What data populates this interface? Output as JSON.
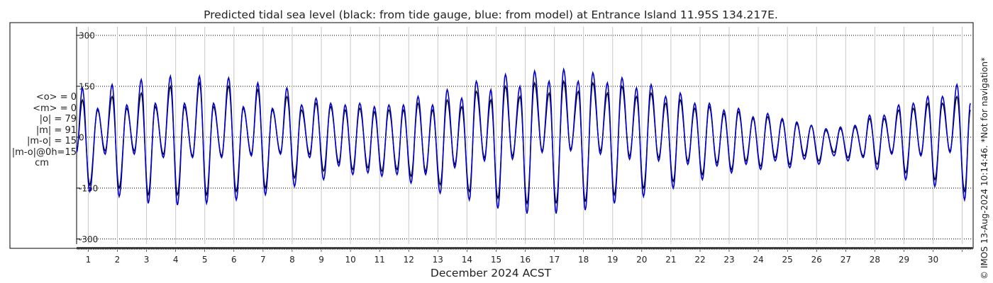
{
  "chart_data": {
    "type": "line",
    "title": "Predicted tidal sea level (black: from tide gauge, blue: from model) at Entrance Island 11.95S 134.217E.",
    "xlabel": "December 2024 ACST",
    "ylabel": "",
    "side_note": "© IMOS 13-Aug-2024 10:14:46. *Not for navigation*",
    "stats": [
      "<o> = 0",
      "<m> = 0",
      "|o| = 79",
      "|m| = 91",
      "|m-o| = 15",
      "|m-o|@0h=15",
      "cm"
    ],
    "xlim": [
      0.6,
      31.35
    ],
    "ylim": [
      -315,
      325
    ],
    "y_ticks": [
      -300,
      -150,
      0,
      150,
      300
    ],
    "y_tick_labels": [
      "-300",
      "-150",
      "0",
      "150",
      "300"
    ],
    "x_ticks": [
      1,
      2,
      3,
      4,
      5,
      6,
      7,
      8,
      9,
      10,
      11,
      12,
      13,
      14,
      15,
      16,
      17,
      18,
      19,
      20,
      21,
      22,
      23,
      24,
      25,
      26,
      27,
      28,
      29,
      30
    ],
    "x_tick_labels": [
      "1",
      "2",
      "3",
      "4",
      "5",
      "6",
      "7",
      "8",
      "9",
      "10",
      "11",
      "12",
      "13",
      "14",
      "15",
      "16",
      "17",
      "18",
      "19",
      "20",
      "21",
      "22",
      "23",
      "24",
      "25",
      "26",
      "27",
      "28",
      "29",
      "30"
    ],
    "grid": true,
    "x_hourly_minor_ticks": true,
    "series": [
      {
        "color": "#000000",
        "x": [
          0.6,
          0.8,
          1.05,
          1.32,
          1.58,
          1.82,
          2.06,
          2.32,
          2.58,
          2.82,
          3.06,
          3.3,
          3.58,
          3.82,
          4.06,
          4.3,
          4.58,
          4.82,
          5.06,
          5.3,
          5.58,
          5.82,
          6.08,
          6.32,
          6.6,
          6.82,
          7.08,
          7.32,
          7.6,
          7.82,
          8.08,
          8.32,
          8.6,
          8.82,
          9.08,
          9.32,
          9.6,
          9.82,
          10.08,
          10.32,
          10.6,
          10.82,
          11.08,
          11.32,
          11.6,
          11.82,
          12.08,
          12.32,
          12.58,
          12.82,
          13.08,
          13.32,
          13.58,
          13.82,
          14.08,
          14.32,
          14.6,
          14.82,
          15.06,
          15.32,
          15.56,
          15.82,
          16.06,
          16.32,
          16.58,
          16.82,
          17.06,
          17.32,
          17.56,
          17.82,
          18.06,
          18.32,
          18.58,
          18.82,
          19.06,
          19.32,
          19.58,
          19.82,
          20.06,
          20.32,
          20.58,
          20.82,
          21.08,
          21.32,
          21.58,
          21.82,
          22.08,
          22.32,
          22.58,
          22.82,
          23.08,
          23.32,
          23.58,
          23.82,
          24.08,
          24.32,
          24.58,
          24.82,
          25.08,
          25.32,
          25.58,
          25.82,
          26.08,
          26.32,
          26.6,
          26.82,
          27.08,
          27.32,
          27.6,
          27.82,
          28.08,
          28.32,
          28.58,
          28.82,
          29.06,
          29.32,
          29.58,
          29.82,
          30.06,
          30.32,
          30.58,
          30.82,
          31.08,
          31.28
        ],
        "y": [
          -40,
          110,
          -140,
          80,
          -40,
          120,
          -150,
          85,
          -40,
          130,
          -170,
          90,
          -50,
          150,
          -170,
          90,
          -55,
          160,
          -170,
          90,
          -55,
          150,
          -160,
          85,
          -50,
          140,
          -150,
          80,
          -45,
          120,
          -120,
          80,
          -50,
          100,
          -100,
          90,
          -75,
          80,
          -95,
          85,
          -90,
          75,
          -100,
          80,
          -95,
          80,
          -115,
          100,
          -100,
          80,
          -140,
          110,
          -80,
          90,
          -160,
          135,
          -60,
          110,
          -180,
          150,
          -55,
          120,
          -195,
          160,
          -40,
          130,
          -195,
          165,
          -35,
          135,
          -190,
          160,
          -40,
          130,
          -170,
          150,
          -55,
          120,
          -150,
          130,
          -60,
          100,
          -130,
          110,
          -70,
          85,
          -110,
          90,
          -75,
          70,
          -95,
          75,
          -70,
          55,
          -85,
          60,
          -60,
          50,
          -80,
          40,
          -55,
          35,
          -70,
          20,
          -45,
          25,
          -60,
          30,
          -55,
          55,
          -80,
          55,
          -45,
          80,
          -105,
          85,
          -50,
          100,
          -125,
          100,
          -40,
          120,
          -160,
          80
        ]
      },
      {
        "color": "#0000cc",
        "x": [
          0.6,
          0.8,
          1.05,
          1.32,
          1.58,
          1.82,
          2.06,
          2.32,
          2.58,
          2.82,
          3.06,
          3.3,
          3.58,
          3.82,
          4.06,
          4.3,
          4.58,
          4.82,
          5.06,
          5.3,
          5.58,
          5.82,
          6.08,
          6.32,
          6.6,
          6.82,
          7.08,
          7.32,
          7.6,
          7.82,
          8.08,
          8.32,
          8.6,
          8.82,
          9.08,
          9.32,
          9.6,
          9.82,
          10.08,
          10.32,
          10.6,
          10.82,
          11.08,
          11.32,
          11.6,
          11.82,
          12.08,
          12.32,
          12.58,
          12.82,
          13.08,
          13.32,
          13.58,
          13.82,
          14.08,
          14.32,
          14.6,
          14.82,
          15.06,
          15.32,
          15.56,
          15.82,
          16.06,
          16.32,
          16.58,
          16.82,
          17.06,
          17.32,
          17.56,
          17.82,
          18.06,
          18.32,
          18.58,
          18.82,
          19.06,
          19.32,
          19.58,
          19.82,
          20.06,
          20.32,
          20.58,
          20.82,
          21.08,
          21.32,
          21.58,
          21.82,
          22.08,
          22.32,
          22.58,
          22.82,
          23.08,
          23.32,
          23.58,
          23.82,
          24.08,
          24.32,
          24.58,
          24.82,
          25.08,
          25.32,
          25.58,
          25.82,
          26.08,
          26.32,
          26.6,
          26.82,
          27.08,
          27.32,
          27.6,
          27.82,
          28.08,
          28.32,
          28.58,
          28.82,
          29.06,
          29.32,
          29.58,
          29.82,
          30.06,
          30.32,
          30.58,
          30.82,
          31.08,
          31.28
        ],
        "y": [
          -45,
          145,
          -160,
          85,
          -50,
          155,
          -175,
          95,
          -50,
          170,
          -195,
          100,
          -60,
          180,
          -200,
          100,
          -60,
          180,
          -195,
          100,
          -60,
          175,
          -185,
          90,
          -55,
          160,
          -170,
          85,
          -50,
          145,
          -145,
          95,
          -60,
          115,
          -125,
          100,
          -85,
          95,
          -110,
          100,
          -105,
          90,
          -115,
          95,
          -110,
          95,
          -135,
          120,
          -110,
          95,
          -165,
          140,
          -90,
          115,
          -185,
          165,
          -70,
          140,
          -210,
          185,
          -65,
          150,
          -225,
          195,
          -45,
          165,
          -225,
          200,
          -40,
          165,
          -215,
          190,
          -50,
          160,
          -195,
          175,
          -65,
          145,
          -175,
          155,
          -70,
          120,
          -150,
          130,
          -80,
          100,
          -125,
          100,
          -85,
          80,
          -105,
          85,
          -80,
          60,
          -95,
          70,
          -70,
          55,
          -90,
          45,
          -65,
          35,
          -80,
          25,
          -55,
          30,
          -70,
          35,
          -60,
          65,
          -95,
          65,
          -50,
          95,
          -125,
          100,
          -55,
          120,
          -145,
          120,
          -45,
          155,
          -185,
          100
        ]
      }
    ]
  }
}
